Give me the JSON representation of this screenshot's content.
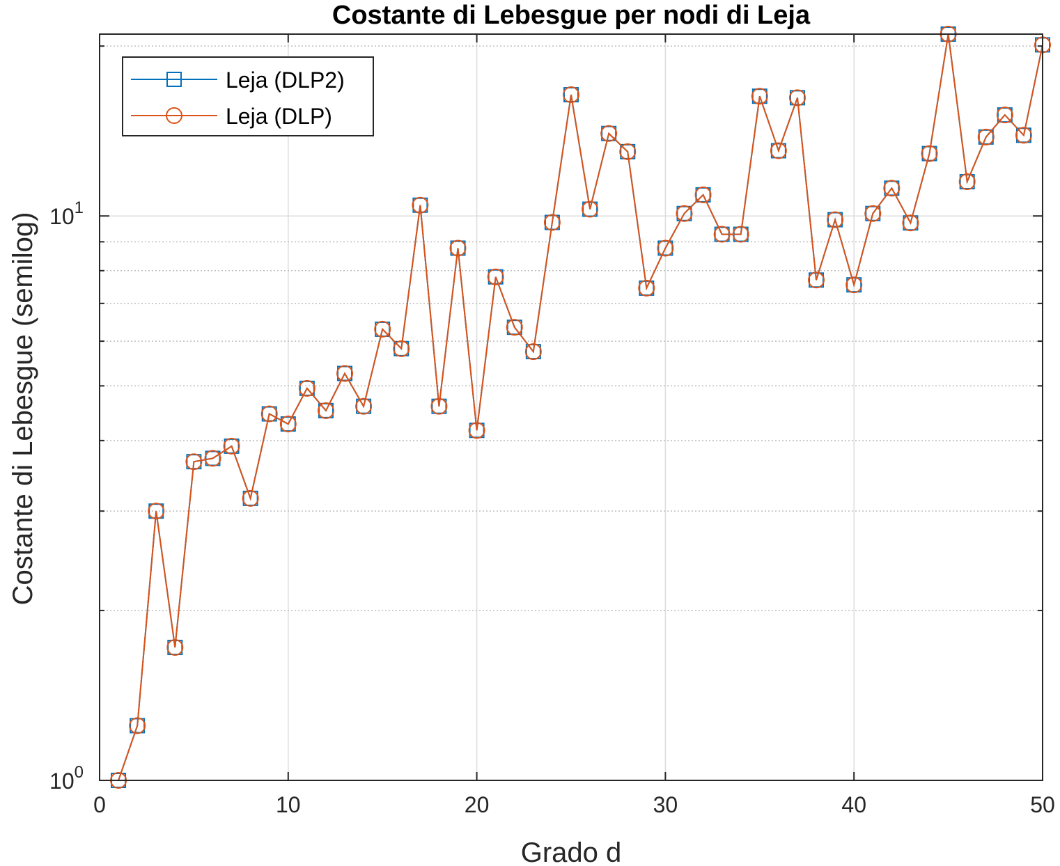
{
  "chart_data": {
    "type": "line",
    "title": "Costante di Lebesgue per nodi di Leja",
    "xlabel": "Grado d",
    "ylabel": "Costante di Lebesgue (semilog)",
    "xscale": "linear",
    "yscale": "log",
    "xlim": [
      0,
      50
    ],
    "ylim": [
      1,
      21
    ],
    "xticks": [
      0,
      10,
      20,
      30,
      40,
      50
    ],
    "xtick_labels": [
      "0",
      "10",
      "20",
      "30",
      "40",
      "50"
    ],
    "yticks": [
      1,
      10
    ],
    "ytick_labels": [
      {
        "base": "10",
        "exp": "0"
      },
      {
        "base": "10",
        "exp": "1"
      }
    ],
    "grid": true,
    "legend_position": "top-left",
    "x": [
      1,
      2,
      3,
      4,
      5,
      6,
      7,
      8,
      9,
      10,
      11,
      12,
      13,
      14,
      15,
      16,
      17,
      18,
      19,
      20,
      21,
      22,
      23,
      24,
      25,
      26,
      27,
      28,
      29,
      30,
      31,
      32,
      33,
      34,
      35,
      36,
      37,
      38,
      39,
      40,
      41,
      42,
      43,
      44,
      45,
      46,
      47,
      48,
      49,
      50
    ],
    "series": [
      {
        "name": "Leja (DLP2)",
        "color": "#0072BD",
        "marker": "square",
        "values": [
          1.0,
          1.25,
          3.0,
          1.72,
          3.67,
          3.72,
          3.91,
          3.16,
          4.46,
          4.28,
          4.95,
          4.52,
          5.26,
          4.6,
          6.3,
          5.82,
          10.45,
          4.6,
          8.77,
          4.17,
          7.8,
          6.35,
          5.75,
          9.74,
          16.4,
          10.28,
          14.0,
          13.0,
          7.45,
          8.77,
          10.1,
          10.9,
          9.28,
          9.28,
          16.3,
          13.05,
          16.2,
          7.7,
          9.85,
          7.55,
          10.1,
          11.2,
          9.72,
          12.9,
          21.0,
          11.5,
          13.8,
          15.1,
          13.9,
          20.1
        ]
      },
      {
        "name": "Leja (DLP)",
        "color": "#D95319",
        "marker": "circle",
        "values": [
          1.0,
          1.25,
          3.0,
          1.72,
          3.67,
          3.72,
          3.91,
          3.16,
          4.46,
          4.28,
          4.95,
          4.52,
          5.26,
          4.6,
          6.3,
          5.82,
          10.45,
          4.6,
          8.77,
          4.17,
          7.8,
          6.35,
          5.75,
          9.74,
          16.4,
          10.28,
          14.0,
          13.0,
          7.45,
          8.77,
          10.1,
          10.9,
          9.28,
          9.28,
          16.3,
          13.05,
          16.2,
          7.7,
          9.85,
          7.55,
          10.1,
          11.2,
          9.72,
          12.9,
          21.0,
          11.5,
          13.8,
          15.1,
          13.9,
          20.1
        ]
      }
    ]
  }
}
